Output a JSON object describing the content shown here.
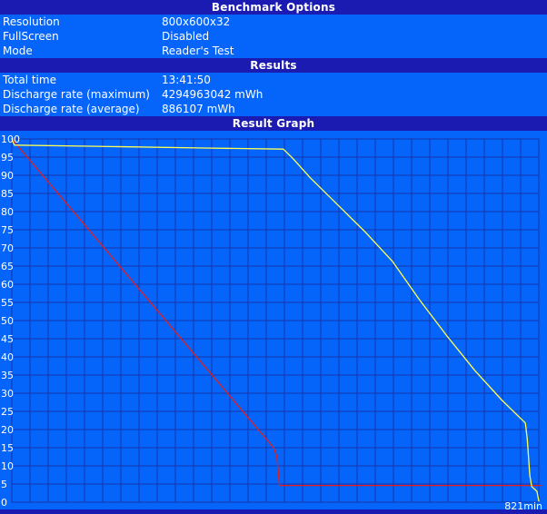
{
  "colors": {
    "header_bg": "#1b1bb2",
    "panel_bg": "#0565fa",
    "grid_line": "#1734a8",
    "text": "#ffffff",
    "yellow_line": "#ffff55",
    "red_line": "#e31e1e"
  },
  "sections": {
    "benchmark_options": {
      "title": "Benchmark Options",
      "rows": [
        {
          "label": "Resolution",
          "value": "800x600x32"
        },
        {
          "label": "FullScreen",
          "value": "Disabled"
        },
        {
          "label": "Mode",
          "value": "Reader's Test"
        }
      ]
    },
    "results": {
      "title": "Results",
      "rows": [
        {
          "label": "Total time",
          "value": "13:41:50"
        },
        {
          "label": "Discharge rate (maximum)",
          "value": "4294963042 mWh"
        },
        {
          "label": "Discharge rate (average)",
          "value": "886107 mWh"
        }
      ]
    },
    "result_graph": {
      "title": "Result Graph"
    }
  },
  "chart_data": {
    "type": "line",
    "title": "Result Graph",
    "xlabel": "",
    "ylabel": "",
    "x_range": [
      0,
      821
    ],
    "y_range": [
      0,
      100
    ],
    "x_end_label": "821min",
    "y_ticks": [
      100,
      95,
      90,
      85,
      80,
      75,
      70,
      65,
      60,
      55,
      50,
      45,
      40,
      35,
      30,
      25,
      20,
      15,
      10,
      5,
      0
    ],
    "grid": true,
    "legend_position": "none",
    "series": [
      {
        "name": "red line (battery % vs minutes)",
        "color": "#e31e1e",
        "points": [
          [
            0,
            100
          ],
          [
            408,
            15
          ],
          [
            413,
            12.5
          ],
          [
            417,
            4.6
          ],
          [
            825,
            4.6
          ]
        ]
      },
      {
        "name": "yellow line (battery % vs minutes, Reader's Test, 821 min)",
        "color": "#ffff55",
        "points": [
          [
            0,
            100
          ],
          [
            4,
            98.3
          ],
          [
            120,
            98
          ],
          [
            300,
            97.5
          ],
          [
            423,
            97.2
          ],
          [
            437,
            94.8
          ],
          [
            465,
            89.3
          ],
          [
            508,
            81.8
          ],
          [
            551,
            74.3
          ],
          [
            593,
            66.3
          ],
          [
            636,
            55.5
          ],
          [
            679,
            45.5
          ],
          [
            721,
            36.3
          ],
          [
            764,
            28
          ],
          [
            800,
            21.8
          ],
          [
            803,
            17.3
          ],
          [
            807,
            7.3
          ],
          [
            810,
            4.3
          ],
          [
            818,
            3
          ],
          [
            821,
            0.3
          ]
        ]
      }
    ]
  }
}
